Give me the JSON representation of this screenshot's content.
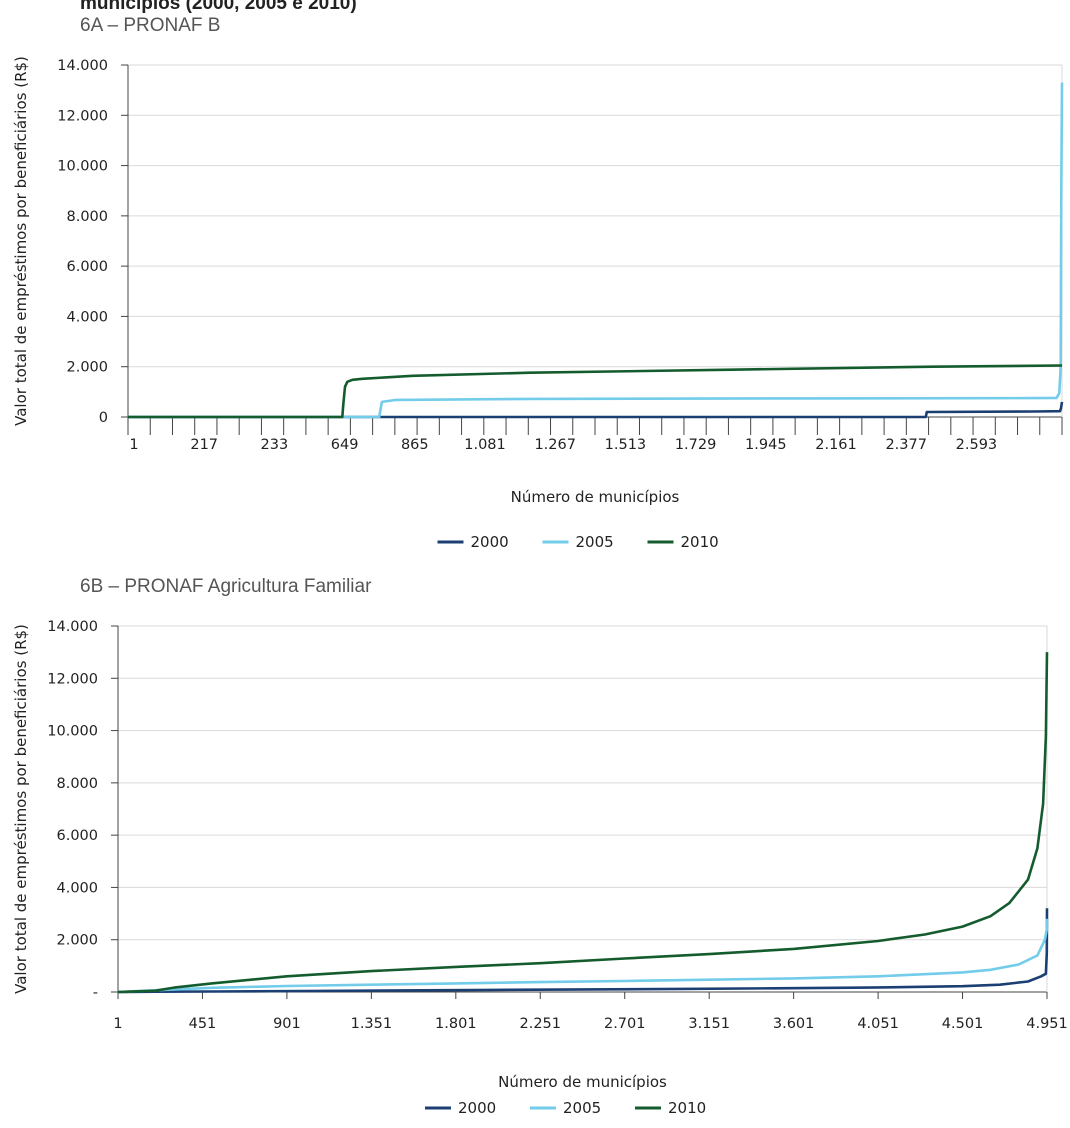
{
  "header": {
    "title": "municípios (2000, 2005 e 2010)"
  },
  "colors": {
    "y2000": "#1b3f73",
    "y2005": "#72ccea",
    "y2010": "#145c2e",
    "grid": "#d9d9d9",
    "axis": "#444444"
  },
  "chart_data": [
    {
      "type": "line",
      "title": "6A – PRONAF B",
      "xlabel": "Número de municípios",
      "ylabel": "Valor total de empréstimos por beneficiários (R$)",
      "ylim": [
        0,
        14000
      ],
      "xlim": [
        1,
        2786
      ],
      "grid": "horizontal",
      "legend": "bottom",
      "y_ticks": [
        0,
        2000,
        4000,
        6000,
        8000,
        10000,
        12000,
        14000
      ],
      "y_tick_labels": [
        "0",
        "2.000",
        "4.000",
        "6.000",
        "8.000",
        "10.000",
        "12.000",
        "14.000"
      ],
      "x_tick_labels": [
        "1",
        "217",
        "233",
        "649",
        "865",
        "1.081",
        "1.267",
        "1.513",
        "1.729",
        "1.945",
        "2.161",
        "2.377",
        "2.593"
      ],
      "series": [
        {
          "name": "2000",
          "color_key": "y2000",
          "x": [
            1,
            2380,
            2383,
            2700,
            2780,
            2783,
            2786
          ],
          "y": [
            0,
            0,
            200,
            220,
            230,
            350,
            600
          ]
        },
        {
          "name": "2005",
          "color_key": "y2005",
          "x": [
            1,
            750,
            758,
            800,
            1200,
            2000,
            2700,
            2770,
            2778,
            2782,
            2784,
            2786
          ],
          "y": [
            0,
            0,
            600,
            680,
            720,
            740,
            750,
            760,
            950,
            2000,
            9000,
            13300
          ]
        },
        {
          "name": "2010",
          "color_key": "y2010",
          "x": [
            1,
            640,
            643,
            648,
            655,
            670,
            700,
            850,
            1200,
            1800,
            2400,
            2786
          ],
          "y": [
            0,
            0,
            500,
            1200,
            1400,
            1480,
            1520,
            1640,
            1760,
            1880,
            2000,
            2050
          ]
        }
      ]
    },
    {
      "type": "line",
      "title": "6B – PRONAF Agricultura Familiar",
      "xlabel": "Número de municípios",
      "ylabel": "Valor total de empréstimos por beneficiários (R$)",
      "ylim": [
        0,
        14000
      ],
      "xlim": [
        1,
        4951
      ],
      "grid": "horizontal",
      "legend": "bottom",
      "y_ticks": [
        0,
        2000,
        4000,
        6000,
        8000,
        10000,
        12000,
        14000
      ],
      "y_tick_labels": [
        "-",
        "2.000",
        "4.000",
        "6.000",
        "8.000",
        "10.000",
        "12.000",
        "14.000"
      ],
      "x_ticks": [
        1,
        451,
        901,
        1351,
        1801,
        2251,
        2701,
        3151,
        3601,
        4051,
        4501,
        4951
      ],
      "x_tick_labels": [
        "1",
        "451",
        "901",
        "1.351",
        "1.801",
        "2.251",
        "2.701",
        "3.151",
        "3.601",
        "4.051",
        "4.501",
        "4.951"
      ],
      "series": [
        {
          "name": "2000",
          "color_key": "y2000",
          "x": [
            1,
            200,
            500,
            1000,
            1500,
            2000,
            2500,
            3000,
            3500,
            4000,
            4500,
            4700,
            4850,
            4920,
            4945,
            4950,
            4951
          ],
          "y": [
            0,
            10,
            20,
            40,
            60,
            80,
            100,
            120,
            140,
            170,
            220,
            280,
            400,
            600,
            700,
            1500,
            3200
          ]
        },
        {
          "name": "2005",
          "color_key": "y2005",
          "x": [
            1,
            150,
            300,
            500,
            900,
            1350,
            1800,
            2250,
            2700,
            3150,
            3600,
            4050,
            4500,
            4650,
            4800,
            4900,
            4940,
            4950,
            4951
          ],
          "y": [
            0,
            50,
            100,
            160,
            230,
            280,
            330,
            380,
            420,
            470,
            520,
            600,
            750,
            850,
            1050,
            1400,
            2000,
            2400,
            2800
          ]
        },
        {
          "name": "2010",
          "color_key": "y2010",
          "x": [
            1,
            200,
            300,
            500,
            900,
            1351,
            1801,
            2251,
            2701,
            3151,
            3601,
            4051,
            4300,
            4501,
            4650,
            4750,
            4850,
            4900,
            4930,
            4945,
            4951
          ],
          "y": [
            0,
            50,
            170,
            330,
            600,
            800,
            960,
            1100,
            1280,
            1450,
            1650,
            1950,
            2200,
            2500,
            2900,
            3400,
            4300,
            5500,
            7200,
            9800,
            13000
          ]
        }
      ]
    }
  ]
}
